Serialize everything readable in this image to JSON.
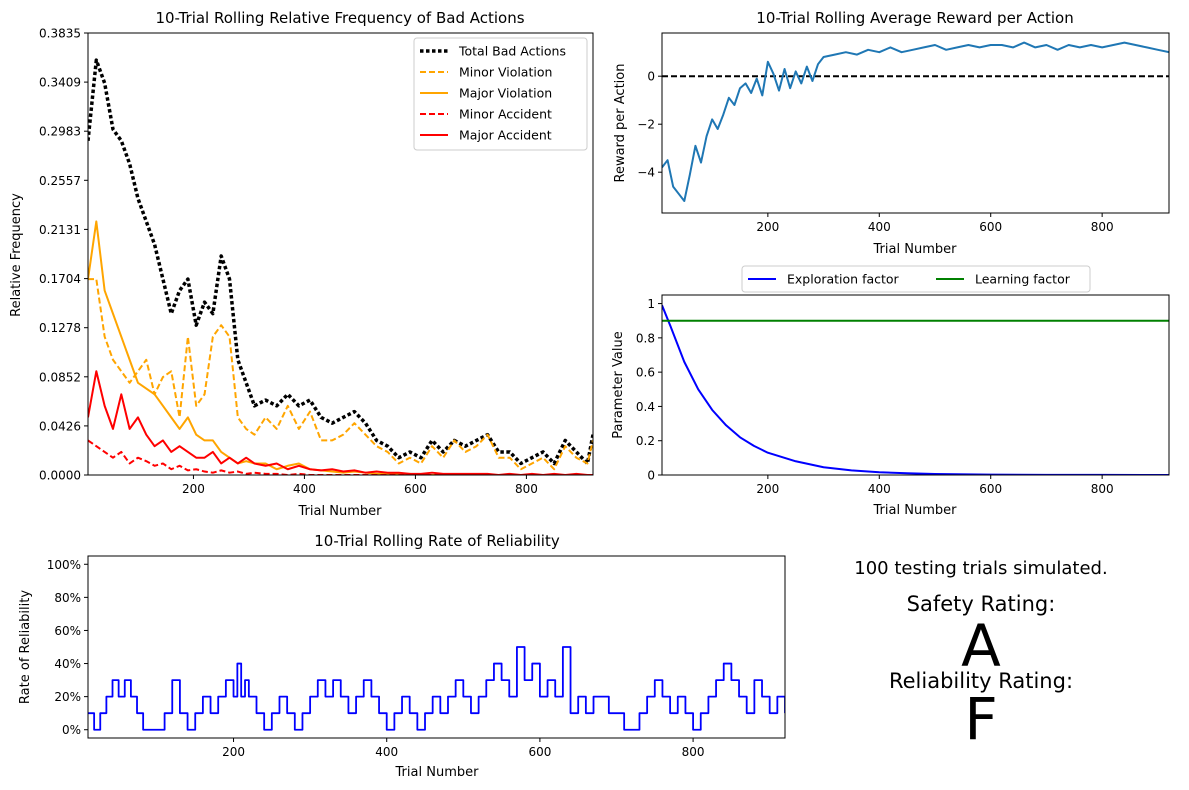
{
  "chart_data": [
    {
      "id": "bad_actions",
      "type": "line",
      "title": "10-Trial Rolling Relative Frequency of Bad Actions",
      "xlabel": "Trial Number",
      "ylabel": "Relative Frequency",
      "xlim": [
        10,
        920
      ],
      "ylim": [
        0,
        0.3835
      ],
      "x_ticks": [
        200,
        400,
        600,
        800
      ],
      "y_ticks": [
        0.0,
        0.0426,
        0.0852,
        0.1278,
        0.1704,
        0.2131,
        0.2557,
        0.2983,
        0.3409,
        0.3835
      ],
      "y_tick_labels": [
        "0.0000",
        "0.0426",
        "0.0852",
        "0.1278",
        "0.1704",
        "0.2131",
        "0.2557",
        "0.2983",
        "0.3409",
        "0.3835"
      ],
      "legend_position": "top-right",
      "series": [
        {
          "name": "Total Bad Actions",
          "color": "#000000",
          "style": "dotted",
          "x": [
            10,
            25,
            40,
            55,
            70,
            85,
            100,
            115,
            130,
            145,
            160,
            175,
            190,
            205,
            220,
            235,
            250,
            265,
            280,
            295,
            310,
            330,
            350,
            370,
            390,
            410,
            430,
            450,
            470,
            490,
            510,
            530,
            550,
            570,
            590,
            610,
            630,
            650,
            670,
            690,
            710,
            730,
            750,
            770,
            790,
            810,
            830,
            850,
            870,
            890,
            910,
            920
          ],
          "y": [
            0.29,
            0.36,
            0.34,
            0.3,
            0.29,
            0.27,
            0.24,
            0.22,
            0.2,
            0.17,
            0.14,
            0.16,
            0.17,
            0.13,
            0.15,
            0.14,
            0.19,
            0.17,
            0.1,
            0.08,
            0.06,
            0.065,
            0.06,
            0.07,
            0.06,
            0.065,
            0.05,
            0.045,
            0.05,
            0.055,
            0.045,
            0.03,
            0.025,
            0.015,
            0.02,
            0.015,
            0.03,
            0.02,
            0.03,
            0.025,
            0.03,
            0.035,
            0.02,
            0.02,
            0.01,
            0.015,
            0.02,
            0.01,
            0.03,
            0.02,
            0.01,
            0.035
          ]
        },
        {
          "name": "Minor Violation",
          "color": "#FFA500",
          "style": "dashed",
          "x": [
            10,
            25,
            40,
            55,
            70,
            85,
            100,
            115,
            130,
            145,
            160,
            175,
            190,
            205,
            220,
            235,
            250,
            265,
            280,
            295,
            310,
            330,
            350,
            370,
            390,
            410,
            430,
            450,
            470,
            490,
            510,
            530,
            550,
            570,
            590,
            610,
            630,
            650,
            670,
            690,
            710,
            730,
            750,
            770,
            790,
            810,
            830,
            850,
            870,
            890,
            910,
            920
          ],
          "y": [
            0.17,
            0.17,
            0.12,
            0.1,
            0.09,
            0.08,
            0.09,
            0.1,
            0.07,
            0.085,
            0.09,
            0.05,
            0.12,
            0.06,
            0.07,
            0.12,
            0.13,
            0.12,
            0.05,
            0.04,
            0.035,
            0.05,
            0.04,
            0.06,
            0.04,
            0.055,
            0.03,
            0.03,
            0.035,
            0.045,
            0.035,
            0.025,
            0.02,
            0.01,
            0.015,
            0.01,
            0.025,
            0.015,
            0.03,
            0.02,
            0.025,
            0.035,
            0.015,
            0.015,
            0.005,
            0.01,
            0.015,
            0.005,
            0.025,
            0.015,
            0.01,
            0.03
          ]
        },
        {
          "name": "Major Violation",
          "color": "#FFA500",
          "style": "solid",
          "x": [
            10,
            25,
            40,
            55,
            70,
            85,
            100,
            115,
            130,
            145,
            160,
            175,
            190,
            205,
            220,
            235,
            250,
            265,
            280,
            295,
            310,
            330,
            350,
            370,
            390,
            410,
            430,
            450,
            470,
            490,
            510,
            530,
            550,
            570,
            590,
            610,
            630,
            650,
            670,
            690,
            710,
            730,
            750,
            770,
            790,
            810,
            830,
            850,
            870,
            890,
            910,
            920
          ],
          "y": [
            0.17,
            0.22,
            0.16,
            0.14,
            0.12,
            0.1,
            0.08,
            0.075,
            0.07,
            0.06,
            0.05,
            0.04,
            0.05,
            0.035,
            0.03,
            0.03,
            0.02,
            0.015,
            0.01,
            0.012,
            0.01,
            0.01,
            0.005,
            0.008,
            0.01,
            0.005,
            0.004,
            0.003,
            0.002,
            0.003,
            0.002,
            0.001,
            0.001,
            0.001,
            0.001,
            0.0,
            0.0,
            0.0,
            0.0,
            0.0,
            0.0,
            0.0,
            0.0,
            0.0,
            0.0,
            0.0,
            0.0,
            0.0,
            0.0,
            0.0,
            0.0,
            0.0
          ]
        },
        {
          "name": "Minor Accident",
          "color": "#FF0000",
          "style": "dashed",
          "x": [
            10,
            25,
            40,
            55,
            70,
            85,
            100,
            115,
            130,
            145,
            160,
            175,
            190,
            205,
            220,
            235,
            250,
            265,
            280,
            295,
            310,
            330,
            350,
            370,
            390,
            410,
            430,
            450,
            470,
            490,
            510,
            530,
            550,
            570,
            590,
            610,
            630,
            650,
            670,
            690,
            710,
            730,
            750,
            770,
            790,
            810,
            830,
            850,
            870,
            890,
            910,
            920
          ],
          "y": [
            0.03,
            0.025,
            0.02,
            0.015,
            0.02,
            0.01,
            0.015,
            0.012,
            0.008,
            0.01,
            0.005,
            0.008,
            0.004,
            0.005,
            0.003,
            0.002,
            0.004,
            0.002,
            0.003,
            0.001,
            0.002,
            0.001,
            0.001,
            0.0,
            0.001,
            0.0,
            0.0,
            0.0,
            0.0,
            0.0,
            0.0,
            0.0,
            0.0,
            0.0,
            0.0,
            0.0,
            0.0,
            0.0,
            0.0,
            0.0,
            0.0,
            0.0,
            0.0,
            0.0,
            0.0,
            0.0,
            0.0,
            0.0,
            0.0,
            0.0,
            0.0,
            0.0
          ]
        },
        {
          "name": "Major Accident",
          "color": "#FF0000",
          "style": "solid",
          "x": [
            10,
            25,
            40,
            55,
            70,
            85,
            100,
            115,
            130,
            145,
            160,
            175,
            190,
            205,
            220,
            235,
            250,
            265,
            280,
            295,
            310,
            330,
            350,
            370,
            390,
            410,
            430,
            450,
            470,
            490,
            510,
            530,
            550,
            570,
            590,
            610,
            630,
            650,
            670,
            690,
            710,
            730,
            750,
            770,
            790,
            810,
            830,
            850,
            870,
            890,
            910,
            920
          ],
          "y": [
            0.05,
            0.09,
            0.06,
            0.04,
            0.07,
            0.04,
            0.05,
            0.035,
            0.025,
            0.03,
            0.02,
            0.025,
            0.02,
            0.015,
            0.015,
            0.02,
            0.01,
            0.015,
            0.01,
            0.015,
            0.01,
            0.008,
            0.01,
            0.005,
            0.008,
            0.005,
            0.004,
            0.005,
            0.003,
            0.004,
            0.002,
            0.003,
            0.002,
            0.002,
            0.001,
            0.001,
            0.002,
            0.001,
            0.001,
            0.001,
            0.001,
            0.001,
            0.0,
            0.001,
            0.0,
            0.001,
            0.0,
            0.001,
            0.0,
            0.001,
            0.0,
            0.0
          ]
        }
      ]
    },
    {
      "id": "reward",
      "type": "line",
      "title": "10-Trial Rolling Average Reward per Action",
      "xlabel": "Trial Number",
      "ylabel": "Reward per Action",
      "xlim": [
        10,
        920
      ],
      "ylim": [
        -5.7,
        1.8
      ],
      "x_ticks": [
        200,
        400,
        600,
        800
      ],
      "y_ticks": [
        -4,
        -2,
        0
      ],
      "reference_line": {
        "y": 0,
        "color": "#000000",
        "style": "dashed"
      },
      "series": [
        {
          "name": "",
          "color": "#1f77b4",
          "style": "solid",
          "x": [
            10,
            20,
            30,
            40,
            50,
            60,
            70,
            80,
            90,
            100,
            110,
            120,
            130,
            140,
            150,
            160,
            170,
            180,
            190,
            200,
            210,
            220,
            230,
            240,
            250,
            260,
            270,
            280,
            290,
            300,
            320,
            340,
            360,
            380,
            400,
            420,
            440,
            460,
            480,
            500,
            520,
            540,
            560,
            580,
            600,
            620,
            640,
            660,
            680,
            700,
            720,
            740,
            760,
            780,
            800,
            820,
            840,
            860,
            880,
            900,
            920
          ],
          "y": [
            -3.8,
            -3.5,
            -4.6,
            -4.9,
            -5.2,
            -4.1,
            -2.9,
            -3.6,
            -2.5,
            -1.8,
            -2.2,
            -1.6,
            -0.9,
            -1.2,
            -0.5,
            -0.3,
            -0.7,
            -0.1,
            -0.8,
            0.6,
            0.1,
            -0.6,
            0.3,
            -0.5,
            0.2,
            -0.3,
            0.4,
            -0.2,
            0.5,
            0.8,
            0.9,
            1.0,
            0.9,
            1.1,
            1.0,
            1.2,
            1.0,
            1.1,
            1.2,
            1.3,
            1.1,
            1.2,
            1.3,
            1.2,
            1.3,
            1.3,
            1.2,
            1.4,
            1.2,
            1.3,
            1.1,
            1.3,
            1.2,
            1.3,
            1.2,
            1.3,
            1.4,
            1.3,
            1.2,
            1.1,
            1.0
          ]
        }
      ]
    },
    {
      "id": "parameters",
      "type": "line",
      "title": "",
      "xlabel": "Trial Number",
      "ylabel": "Parameter Value",
      "xlim": [
        10,
        920
      ],
      "ylim": [
        0,
        1.05
      ],
      "x_ticks": [
        200,
        400,
        600,
        800
      ],
      "y_ticks": [
        0.0,
        0.2,
        0.4,
        0.6,
        0.8,
        1.0
      ],
      "legend_position": "top, outside",
      "series": [
        {
          "name": "Exploration factor",
          "color": "#0000FF",
          "style": "solid",
          "x": [
            10,
            25,
            50,
            75,
            100,
            125,
            150,
            175,
            200,
            250,
            300,
            350,
            400,
            450,
            500,
            600,
            700,
            800,
            920
          ],
          "y": [
            0.99,
            0.87,
            0.66,
            0.5,
            0.38,
            0.29,
            0.22,
            0.17,
            0.13,
            0.08,
            0.045,
            0.027,
            0.016,
            0.01,
            0.006,
            0.002,
            0.001,
            0.0005,
            0.0001
          ]
        },
        {
          "name": "Learning factor",
          "color": "#008000",
          "style": "solid",
          "x": [
            10,
            920
          ],
          "y": [
            0.9,
            0.9
          ]
        }
      ]
    },
    {
      "id": "reliability",
      "type": "line",
      "title": "10-Trial Rolling Rate of Reliability",
      "xlabel": "Trial Number",
      "ylabel": "Rate of Reliability",
      "xlim": [
        10,
        920
      ],
      "ylim": [
        -0.05,
        1.05
      ],
      "x_ticks": [
        200,
        400,
        600,
        800
      ],
      "y_ticks": [
        0,
        0.2,
        0.4,
        0.6,
        0.8,
        1.0
      ],
      "y_tick_labels": [
        "0%",
        "20%",
        "40%",
        "60%",
        "80%",
        "100%"
      ],
      "series": [
        {
          "name": "",
          "color": "#0000FF",
          "style": "step",
          "x": [
            10,
            18,
            26,
            34,
            42,
            50,
            58,
            66,
            74,
            82,
            90,
            110,
            120,
            130,
            140,
            150,
            160,
            170,
            180,
            190,
            200,
            205,
            210,
            215,
            220,
            230,
            240,
            250,
            260,
            270,
            280,
            290,
            300,
            310,
            320,
            330,
            340,
            350,
            360,
            370,
            380,
            390,
            400,
            410,
            420,
            430,
            440,
            450,
            460,
            470,
            480,
            490,
            500,
            510,
            520,
            530,
            540,
            550,
            560,
            570,
            580,
            590,
            600,
            610,
            620,
            630,
            640,
            650,
            660,
            670,
            690,
            710,
            730,
            740,
            750,
            760,
            770,
            780,
            790,
            800,
            810,
            820,
            830,
            840,
            850,
            860,
            870,
            880,
            890,
            900,
            910,
            920
          ],
          "y": [
            0.1,
            0.0,
            0.1,
            0.2,
            0.3,
            0.2,
            0.3,
            0.2,
            0.1,
            0.0,
            0.0,
            0.1,
            0.3,
            0.1,
            0.0,
            0.1,
            0.2,
            0.1,
            0.2,
            0.3,
            0.2,
            0.4,
            0.2,
            0.3,
            0.2,
            0.1,
            0.0,
            0.1,
            0.2,
            0.1,
            0.0,
            0.1,
            0.2,
            0.3,
            0.2,
            0.3,
            0.2,
            0.1,
            0.2,
            0.3,
            0.2,
            0.1,
            0.0,
            0.1,
            0.2,
            0.1,
            0.0,
            0.1,
            0.2,
            0.1,
            0.2,
            0.3,
            0.2,
            0.1,
            0.2,
            0.3,
            0.4,
            0.3,
            0.2,
            0.5,
            0.3,
            0.4,
            0.2,
            0.3,
            0.2,
            0.5,
            0.1,
            0.2,
            0.1,
            0.2,
            0.1,
            0.0,
            0.1,
            0.2,
            0.3,
            0.2,
            0.1,
            0.2,
            0.1,
            0.0,
            0.1,
            0.2,
            0.3,
            0.4,
            0.3,
            0.2,
            0.1,
            0.3,
            0.2,
            0.1,
            0.2,
            0.1
          ]
        }
      ]
    }
  ],
  "summary": {
    "trials_text": "100 testing trials simulated.",
    "safety_label": "Safety Rating:",
    "safety_grade": "A",
    "safety_color": "#008000",
    "reliability_label": "Reliability Rating:",
    "reliability_grade": "F",
    "reliability_color": "#FF0000"
  }
}
